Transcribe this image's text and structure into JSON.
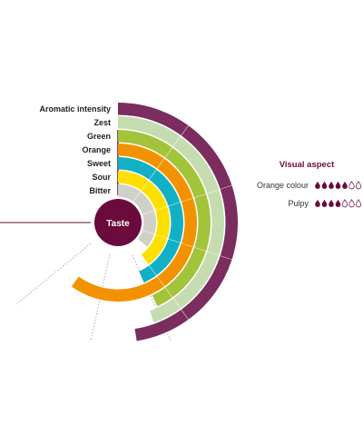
{
  "chart_data": {
    "type": "radial-bar",
    "center_label": "Taste",
    "center_color": "#6b0a3c",
    "scale_max": 5,
    "series": [
      {
        "name": "Aromatic intensity",
        "value": 4.75,
        "color": "#7a2d5e"
      },
      {
        "name": "Zest",
        "value": 4.45,
        "color": "#c5dcb0"
      },
      {
        "name": "Green",
        "value": 4.3,
        "color": "#a3c33a"
      },
      {
        "name": "Orange",
        "value": 6.0,
        "color": "#f39200"
      },
      {
        "name": "Sweet",
        "value": 4.35,
        "color": "#12b0c5"
      },
      {
        "name": "Sour",
        "value": 4.0,
        "color": "#ffdf00"
      },
      {
        "name": "Bitter",
        "value": 3.6,
        "color": "#cfd1c9"
      }
    ]
  },
  "visual_aspect": {
    "title": "Visual aspect",
    "title_color": "#6b0a3c",
    "drop_max": 7,
    "drop_color": "#6b0a3c",
    "items": [
      {
        "label": "Orange colour",
        "filled": 5
      },
      {
        "label": "Pulpy",
        "filled": 4
      }
    ]
  }
}
